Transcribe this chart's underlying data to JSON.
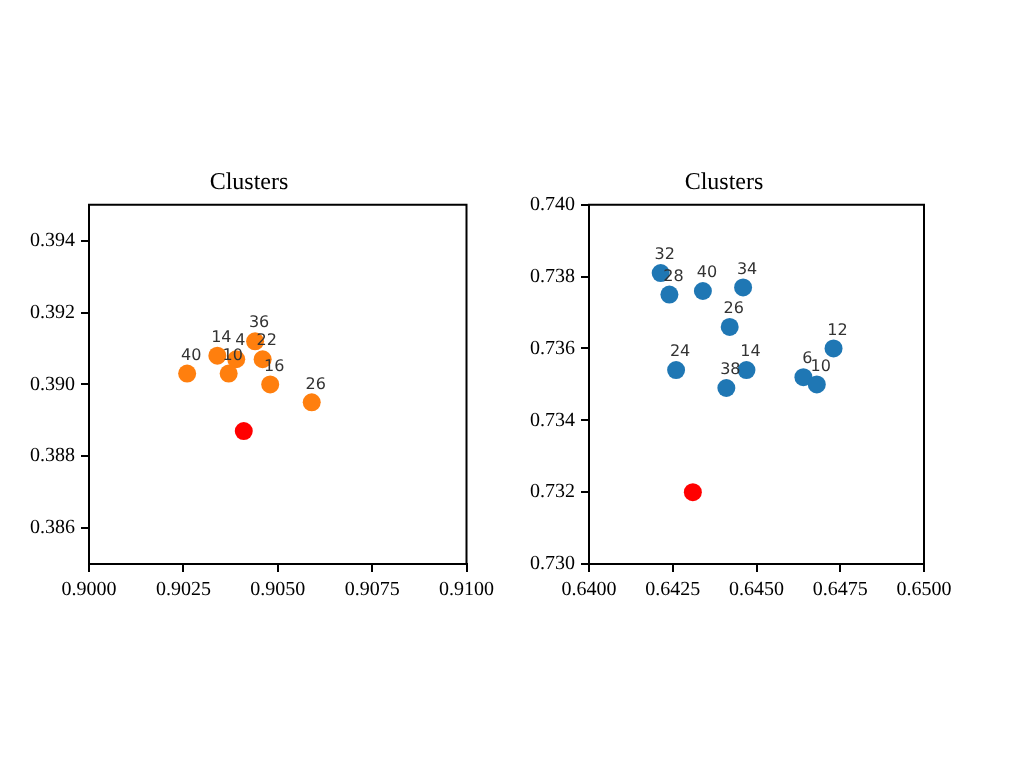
{
  "chart_data": [
    {
      "type": "scatter",
      "title": "Clusters",
      "marker": "circle",
      "grid": false,
      "legend": false,
      "xlim": [
        0.9,
        0.91
      ],
      "xticks": [
        {
          "value": 0.9,
          "label": "0.9000"
        },
        {
          "value": 0.9025,
          "label": "0.9025"
        },
        {
          "value": 0.905,
          "label": "0.9050"
        },
        {
          "value": 0.9075,
          "label": "0.9075"
        },
        {
          "value": 0.91,
          "label": "0.9100"
        }
      ],
      "ylim": [
        0.385,
        0.395
      ],
      "yticks": [
        0.386,
        0.388,
        {
          "value": 0.39,
          "label": "0.390"
        },
        0.392,
        0.394
      ],
      "series": [
        {
          "color": "#ff7f0e",
          "x": [
            0.9026,
            0.9059,
            0.9048,
            0.9034,
            0.9039,
            0.9037,
            0.9044,
            0.9046
          ],
          "values": [
            0.3903,
            0.3895,
            0.39,
            0.3908,
            0.3907,
            0.3903,
            0.3912,
            0.3907
          ]
        },
        {
          "color": "#ff0000",
          "x": [
            0.9041
          ],
          "values": [
            0.3887
          ]
        }
      ],
      "annotations": [
        {
          "text": "40",
          "x": 0.9026,
          "y": 0.3903
        },
        {
          "text": "26",
          "x": 0.9059,
          "y": 0.3895
        },
        {
          "text": "16",
          "x": 0.9048,
          "y": 0.39
        },
        {
          "text": "14",
          "x": 0.9034,
          "y": 0.3908
        },
        {
          "text": "4",
          "x": 0.9039,
          "y": 0.3907
        },
        {
          "text": "10",
          "x": 0.9037,
          "y": 0.3903
        },
        {
          "text": "36",
          "x": 0.9044,
          "y": 0.3912
        },
        {
          "text": "22",
          "x": 0.9046,
          "y": 0.3907
        }
      ]
    },
    {
      "type": "scatter",
      "title": "Clusters",
      "marker": "circle",
      "grid": false,
      "legend": false,
      "xlim": [
        0.64,
        0.65
      ],
      "xticks": [
        {
          "value": 0.64,
          "label": "0.6400"
        },
        {
          "value": 0.6425,
          "label": "0.6425"
        },
        {
          "value": 0.645,
          "label": "0.6450"
        },
        {
          "value": 0.6475,
          "label": "0.6475"
        },
        {
          "value": 0.65,
          "label": "0.6500"
        }
      ],
      "ylim": [
        0.73,
        0.74
      ],
      "yticks": [
        {
          "value": 0.73,
          "label": "0.730"
        },
        0.732,
        0.734,
        0.736,
        0.738,
        {
          "value": 0.74,
          "label": "0.740"
        }
      ],
      "series": [
        {
          "color": "#1f77b4",
          "x": [
            0.64214,
            0.6424,
            0.6434,
            0.6446,
            0.6442,
            0.6473,
            0.6447,
            0.6441,
            0.6464,
            0.6468,
            0.6426
          ],
          "values": [
            0.7381,
            0.7375,
            0.7376,
            0.7377,
            0.7366,
            0.736,
            0.7354,
            0.7349,
            0.7352,
            0.735,
            0.7354
          ]
        },
        {
          "color": "#ff0000",
          "x": [
            0.6431
          ],
          "values": [
            0.732
          ]
        }
      ],
      "annotations": [
        {
          "text": "32",
          "x": 0.64214,
          "y": 0.7381
        },
        {
          "text": "28",
          "x": 0.6424,
          "y": 0.7375
        },
        {
          "text": "40",
          "x": 0.6434,
          "y": 0.7376
        },
        {
          "text": "34",
          "x": 0.6446,
          "y": 0.7377
        },
        {
          "text": "26",
          "x": 0.6442,
          "y": 0.7366
        },
        {
          "text": "12",
          "x": 0.6473,
          "y": 0.736
        },
        {
          "text": "14",
          "x": 0.6447,
          "y": 0.7354
        },
        {
          "text": "38",
          "x": 0.6441,
          "y": 0.7349
        },
        {
          "text": "6",
          "x": 0.6464,
          "y": 0.7352
        },
        {
          "text": "10",
          "x": 0.6468,
          "y": 0.735
        },
        {
          "text": "24",
          "x": 0.6426,
          "y": 0.7354
        }
      ]
    }
  ]
}
